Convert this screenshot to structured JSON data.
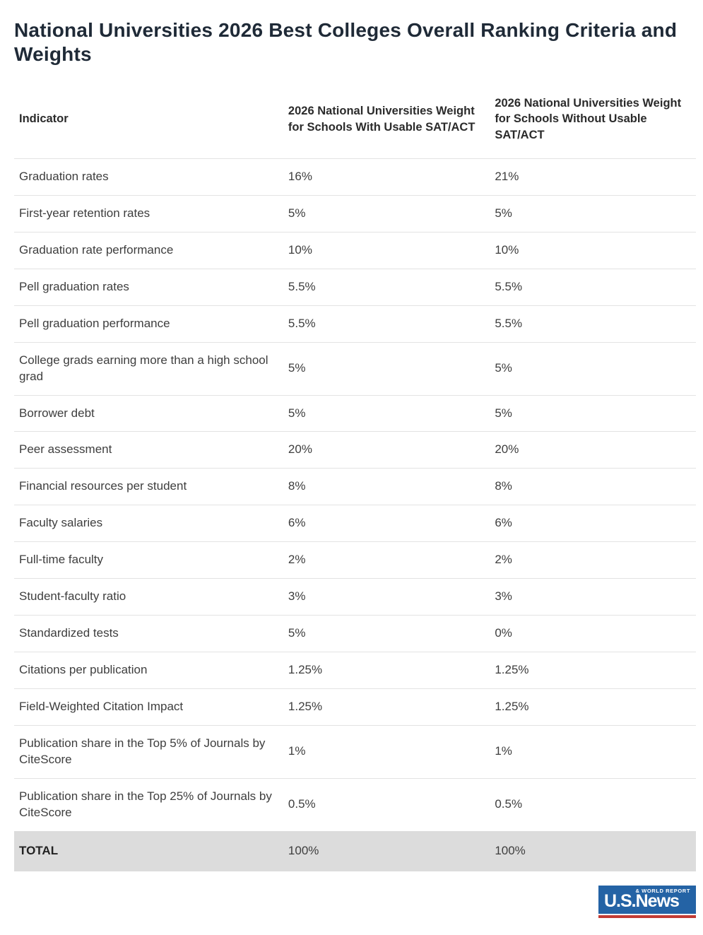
{
  "title": "National Universities 2026 Best Colleges Overall Ranking Criteria and Weights",
  "chart_data": {
    "type": "table",
    "title": "National Universities 2026 Best Colleges Overall Ranking Criteria and Weights",
    "columns": [
      "Indicator",
      "2026 National Universities Weight for Schools With Usable SAT/ACT",
      "2026 National Universities Weight for Schools Without Usable SAT/ACT"
    ],
    "rows": [
      [
        "Graduation rates",
        "16%",
        "21%"
      ],
      [
        "First-year retention rates",
        "5%",
        "5%"
      ],
      [
        "Graduation rate performance",
        "10%",
        "10%"
      ],
      [
        "Pell graduation rates",
        "5.5%",
        "5.5%"
      ],
      [
        "Pell graduation performance",
        "5.5%",
        "5.5%"
      ],
      [
        "College grads earning more than a high school grad",
        "5%",
        "5%"
      ],
      [
        "Borrower debt",
        "5%",
        "5%"
      ],
      [
        "Peer assessment",
        "20%",
        "20%"
      ],
      [
        "Financial resources per student",
        "8%",
        "8%"
      ],
      [
        "Faculty salaries",
        "6%",
        "6%"
      ],
      [
        "Full-time faculty",
        "2%",
        "2%"
      ],
      [
        "Student-faculty ratio",
        "3%",
        "3%"
      ],
      [
        "Standardized tests",
        "5%",
        "0%"
      ],
      [
        "Citations per publication",
        "1.25%",
        "1.25%"
      ],
      [
        "Field-Weighted Citation Impact",
        "1.25%",
        "1.25%"
      ],
      [
        "Publication share in the Top 5% of Journals by CiteScore",
        "1%",
        "1%"
      ],
      [
        "Publication share in the Top 25% of Journals by CiteScore",
        "0.5%",
        "0.5%"
      ],
      [
        "TOTAL",
        "100%",
        "100%"
      ]
    ]
  },
  "logo": {
    "main": "U.S.News",
    "tagline": "& WORLD REPORT"
  },
  "colors": {
    "title_text": "#1f2a37",
    "body_text": "#3e3e3e",
    "divider": "#e3e3e3",
    "total_row_bg": "#dcdcdc",
    "logo_blue": "#2463a5",
    "logo_red": "#c23b34"
  }
}
